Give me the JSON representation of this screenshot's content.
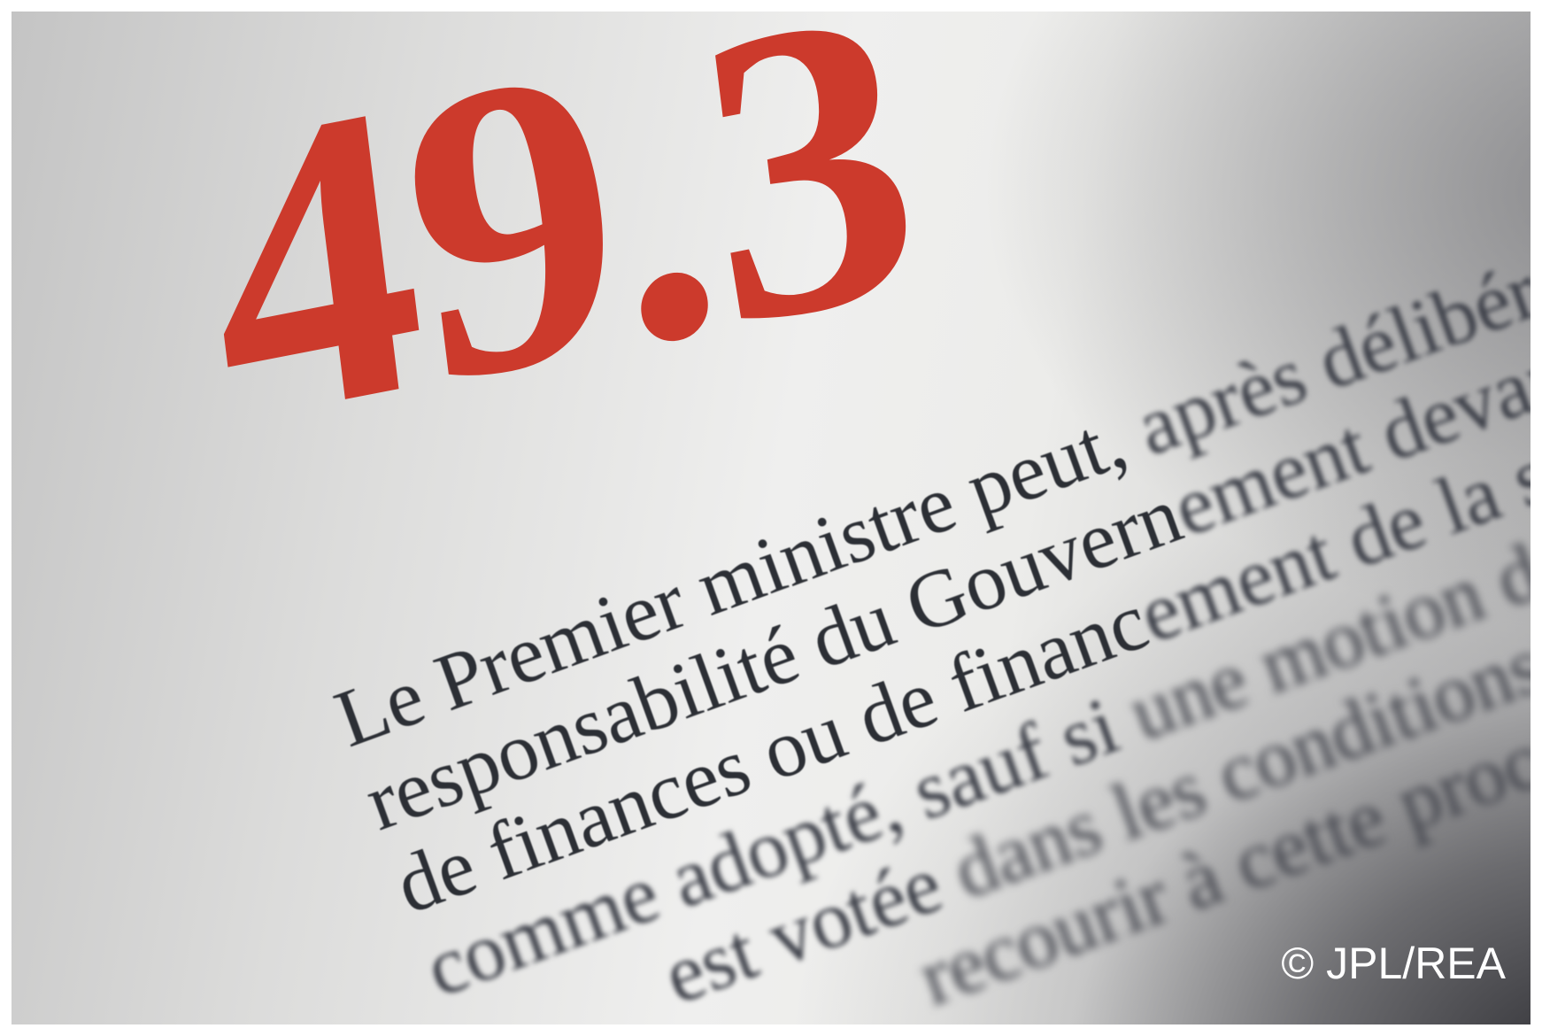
{
  "heading": "49.3",
  "paragraph": [
    {
      "clear": "Le Premier ministre peut,",
      "blurred": " après délibération"
    },
    {
      "clear": "responsabilité du Gouvern",
      "blurred": "ement devant l'A"
    },
    {
      "clear": "de finances ou de financ",
      "blurred": "ement de la sécurité"
    },
    {
      "clear": "comme adopté, sauf si",
      "blurred": " une motion de censure"
    },
    {
      "clear": "est votée",
      "blurred": " dans les conditions prévues"
    },
    {
      "clear": "",
      "blurred": "recourir à cette procédure"
    }
  ],
  "credit": "© JPL/REA",
  "colors": {
    "heading": "#cc3a2c",
    "text": "#2c2f35",
    "credit": "#ffffff"
  }
}
